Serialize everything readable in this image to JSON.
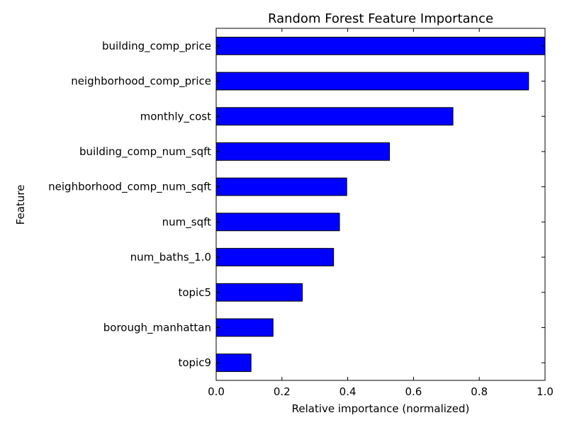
{
  "chart_data": {
    "type": "bar",
    "orientation": "horizontal",
    "title": "Random Forest Feature Importance",
    "xlabel": "Relative importance (normalized)",
    "ylabel": "Feature",
    "xlim": [
      0.0,
      1.0
    ],
    "xticks": [
      "0.0",
      "0.2",
      "0.4",
      "0.6",
      "0.8",
      "1.0"
    ],
    "categories": [
      "building_comp_price",
      "neighborhood_comp_price",
      "monthly_cost",
      "building_comp_num_sqft",
      "neighborhood_comp_num_sqft",
      "num_sqft",
      "num_baths_1.0",
      "topic5",
      "borough_manhattan",
      "topic9"
    ],
    "values": [
      1.0,
      0.95,
      0.72,
      0.527,
      0.397,
      0.375,
      0.357,
      0.262,
      0.173,
      0.106
    ],
    "bar_color": "#0000ff",
    "bar_edge_color": "#000000",
    "grid": false,
    "legend": "none"
  }
}
